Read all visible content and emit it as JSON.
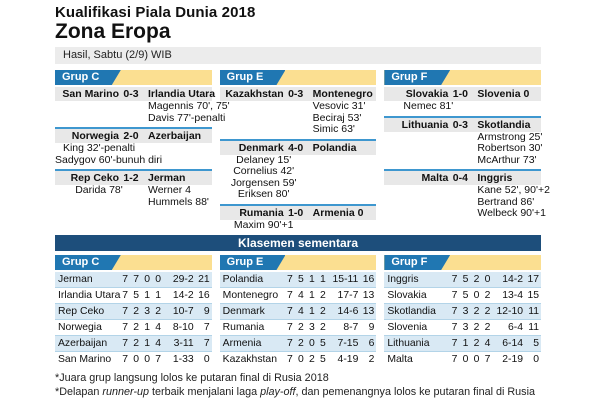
{
  "page": {
    "title": "Kualifikasi Piala Dunia 2018",
    "subtitle": "Zona Eropa",
    "date_bar": "Hasil, Sabtu (2/9) WIB"
  },
  "colors": {
    "banner_blue": "#2077b2",
    "banner_yellow": "#fbdf91",
    "navy": "#1d4e7b",
    "row_blue": "#d9e9f4",
    "separator_blue": "#3e97cf",
    "gray_bar": "#ececec"
  },
  "results": {
    "groups": [
      {
        "name": "Grup C",
        "matches": [
          {
            "home": "San Marino",
            "score": "0-3",
            "away": "Irlandia Utara",
            "scorers": [
              {
                "home": "",
                "away": "Magennis 70', 75'"
              },
              {
                "home": "",
                "away": "Davis 77'-penalti"
              }
            ]
          },
          {
            "home": "Norwegia",
            "score": "2-0",
            "away": "Azerbaijan",
            "scorers": [
              {
                "home": "King 32'-penalti",
                "away": ""
              },
              {
                "home": "Sadygov 60'-bunuh diri",
                "away": ""
              }
            ]
          },
          {
            "home": "Rep Ceko",
            "score": "1-2",
            "away": "Jerman",
            "scorers": [
              {
                "home": "Darida 78'",
                "away": "Werner 4"
              },
              {
                "home": "",
                "away": "Hummels 88'"
              }
            ]
          }
        ]
      },
      {
        "name": "Grup E",
        "matches": [
          {
            "home": "Kazakhstan",
            "score": "0-3",
            "away": "Montenegro",
            "scorers": [
              {
                "home": "",
                "away": "Vesovic 31'"
              },
              {
                "home": "",
                "away": "Beciraj 53'"
              },
              {
                "home": "",
                "away": "Simic 63'"
              }
            ]
          },
          {
            "home": "Denmark",
            "score": "4-0",
            "away": "Polandia",
            "scorers": [
              {
                "home": "Delaney 15'",
                "away": ""
              },
              {
                "home": "Cornelius 42'",
                "away": ""
              },
              {
                "home": "Jorgensen 59'",
                "away": ""
              },
              {
                "home": "Eriksen 80'",
                "away": ""
              }
            ]
          },
          {
            "home": "Rumania",
            "score": "1-0",
            "away": "Armenia 0",
            "scorers": [
              {
                "home": "Maxim 90'+1",
                "away": ""
              }
            ]
          }
        ]
      },
      {
        "name": "Grup F",
        "matches": [
          {
            "home": "Slovakia",
            "score": "1-0",
            "away": "Slovenia 0",
            "scorers": [
              {
                "home": "Nemec 81'",
                "away": ""
              }
            ]
          },
          {
            "home": "Lithuania",
            "score": "0-3",
            "away": "Skotlandia",
            "scorers": [
              {
                "home": "",
                "away": "Armstrong 25'"
              },
              {
                "home": "",
                "away": "Robertson 30'"
              },
              {
                "home": "",
                "away": "McArthur 73'"
              }
            ]
          },
          {
            "home": "Malta",
            "score": "0-4",
            "away": "Inggris",
            "scorers": [
              {
                "home": "",
                "away": "Kane 52', 90'+2"
              },
              {
                "home": "",
                "away": "Bertrand 86'"
              },
              {
                "home": "",
                "away": "Welbeck 90'+1"
              }
            ]
          }
        ]
      }
    ]
  },
  "standings": {
    "title": "Klasemen sementara",
    "groups": [
      {
        "name": "Grup C",
        "rows": [
          {
            "team": "Jerman",
            "p": "7",
            "w": "7",
            "d": "0",
            "l": "0",
            "goals": "29-2",
            "pts": "21"
          },
          {
            "team": "Irlandia Utara",
            "p": "7",
            "w": "5",
            "d": "1",
            "l": "1",
            "goals": "14-2",
            "pts": "16"
          },
          {
            "team": "Rep Ceko",
            "p": "7",
            "w": "2",
            "d": "3",
            "l": "2",
            "goals": "10-7",
            "pts": "9"
          },
          {
            "team": "Norwegia",
            "p": "7",
            "w": "2",
            "d": "1",
            "l": "4",
            "goals": "8-10",
            "pts": "7"
          },
          {
            "team": "Azerbaijan",
            "p": "7",
            "w": "2",
            "d": "1",
            "l": "4",
            "goals": "3-11",
            "pts": "7"
          },
          {
            "team": "San Marino",
            "p": "7",
            "w": "0",
            "d": "0",
            "l": "7",
            "goals": "1-33",
            "pts": "0"
          }
        ]
      },
      {
        "name": "Grup E",
        "rows": [
          {
            "team": "Polandia",
            "p": "7",
            "w": "5",
            "d": "1",
            "l": "1",
            "goals": "15-11",
            "pts": "16"
          },
          {
            "team": "Montenegro",
            "p": "7",
            "w": "4",
            "d": "1",
            "l": "2",
            "goals": "17-7",
            "pts": "13"
          },
          {
            "team": "Denmark",
            "p": "7",
            "w": "4",
            "d": "1",
            "l": "2",
            "goals": "14-6",
            "pts": "13"
          },
          {
            "team": "Rumania",
            "p": "7",
            "w": "2",
            "d": "3",
            "l": "2",
            "goals": "8-7",
            "pts": "9"
          },
          {
            "team": "Armenia",
            "p": "7",
            "w": "2",
            "d": "0",
            "l": "5",
            "goals": "7-15",
            "pts": "6"
          },
          {
            "team": "Kazakhstan",
            "p": "7",
            "w": "0",
            "d": "2",
            "l": "5",
            "goals": "4-19",
            "pts": "2"
          }
        ]
      },
      {
        "name": "Grup F",
        "rows": [
          {
            "team": "Inggris",
            "p": "7",
            "w": "5",
            "d": "2",
            "l": "0",
            "goals": "14-2",
            "pts": "17"
          },
          {
            "team": "Slovakia",
            "p": "7",
            "w": "5",
            "d": "0",
            "l": "2",
            "goals": "13-4",
            "pts": "15"
          },
          {
            "team": "Skotlandia",
            "p": "7",
            "w": "3",
            "d": "2",
            "l": "2",
            "goals": "12-10",
            "pts": "11"
          },
          {
            "team": "Slovenia",
            "p": "7",
            "w": "3",
            "d": "2",
            "l": "2",
            "goals": "6-4",
            "pts": "11"
          },
          {
            "team": "Lithuania",
            "p": "7",
            "w": "1",
            "d": "2",
            "l": "4",
            "goals": "6-14",
            "pts": "5"
          },
          {
            "team": "Malta",
            "p": "7",
            "w": "0",
            "d": "0",
            "l": "7",
            "goals": "2-19",
            "pts": "0"
          }
        ]
      }
    ]
  },
  "footnotes": {
    "line1": "*Juara grup langsung lolos ke putaran final di Rusia 2018",
    "line2": {
      "pre": "*Delapan ",
      "italic1": "runner-up",
      "mid": " terbaik menjalani laga ",
      "italic2": "play-off",
      "post": ", dan pemenangnya lolos ke putaran final di Rusia 2018"
    }
  }
}
